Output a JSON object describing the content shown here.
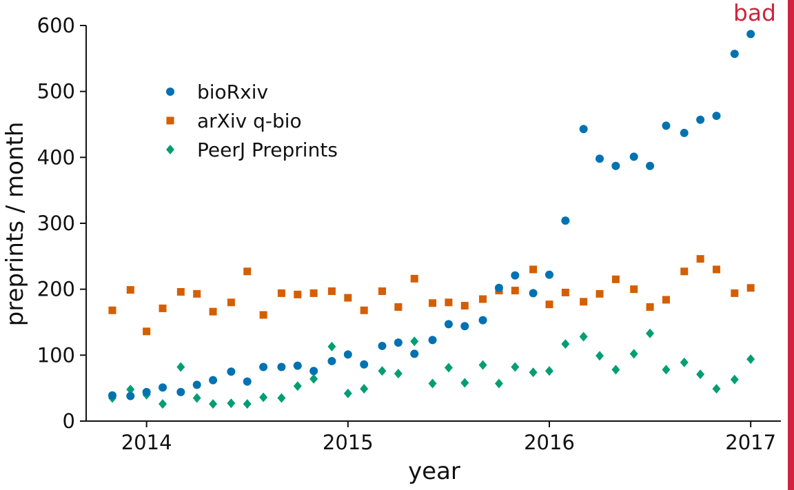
{
  "badge": {
    "text": "bad",
    "color": "#D0243E"
  },
  "chart_data": {
    "type": "scatter",
    "title": "",
    "xlabel": "year",
    "ylabel": "preprints / month",
    "xlim": [
      2013.7,
      2017.15
    ],
    "ylim": [
      0,
      600
    ],
    "xticks": [
      2014,
      2015,
      2016,
      2017
    ],
    "xtick_labels": [
      "2014",
      "2015",
      "2016",
      "2017"
    ],
    "yticks": [
      0,
      100,
      200,
      300,
      400,
      500,
      600
    ],
    "ytick_labels": [
      "0",
      "100",
      "200",
      "300",
      "400",
      "500",
      "600"
    ],
    "grid": false,
    "legend_position": "upper-left",
    "x": [
      2013.83,
      2013.92,
      2014.0,
      2014.08,
      2014.17,
      2014.25,
      2014.33,
      2014.42,
      2014.5,
      2014.58,
      2014.67,
      2014.75,
      2014.83,
      2014.92,
      2015.0,
      2015.08,
      2015.17,
      2015.25,
      2015.33,
      2015.42,
      2015.5,
      2015.58,
      2015.67,
      2015.75,
      2015.83,
      2015.92,
      2016.0,
      2016.08,
      2016.17,
      2016.25,
      2016.33,
      2016.42,
      2016.5,
      2016.58,
      2016.67,
      2016.75,
      2016.83,
      2016.92,
      2017.0
    ],
    "series": [
      {
        "name": "bioRxiv",
        "marker": "circle",
        "color": "#0072B2",
        "values": [
          39,
          38,
          44,
          51,
          44,
          55,
          62,
          75,
          60,
          82,
          82,
          84,
          76,
          91,
          101,
          86,
          114,
          119,
          102,
          123,
          147,
          144,
          153,
          202,
          221,
          194,
          222,
          304,
          443,
          398,
          387,
          401,
          387,
          448,
          437,
          457,
          463,
          557,
          587
        ]
      },
      {
        "name": "arXiv q-bio",
        "marker": "square",
        "color": "#D55E00",
        "values": [
          168,
          199,
          136,
          171,
          196,
          193,
          166,
          180,
          227,
          161,
          194,
          192,
          194,
          197,
          187,
          168,
          197,
          173,
          216,
          179,
          180,
          175,
          185,
          198,
          198,
          230,
          177,
          195,
          181,
          193,
          215,
          200,
          173,
          184,
          227,
          246,
          230,
          194,
          202
        ]
      },
      {
        "name": "PeerJ Preprints",
        "marker": "diamond",
        "color": "#009E73",
        "values": [
          35,
          48,
          40,
          26,
          82,
          35,
          26,
          27,
          26,
          36,
          35,
          53,
          64,
          113,
          42,
          49,
          76,
          72,
          121,
          57,
          81,
          58,
          85,
          57,
          82,
          74,
          76,
          117,
          128,
          99,
          78,
          102,
          133,
          78,
          89,
          71,
          49,
          63,
          94
        ]
      }
    ]
  }
}
